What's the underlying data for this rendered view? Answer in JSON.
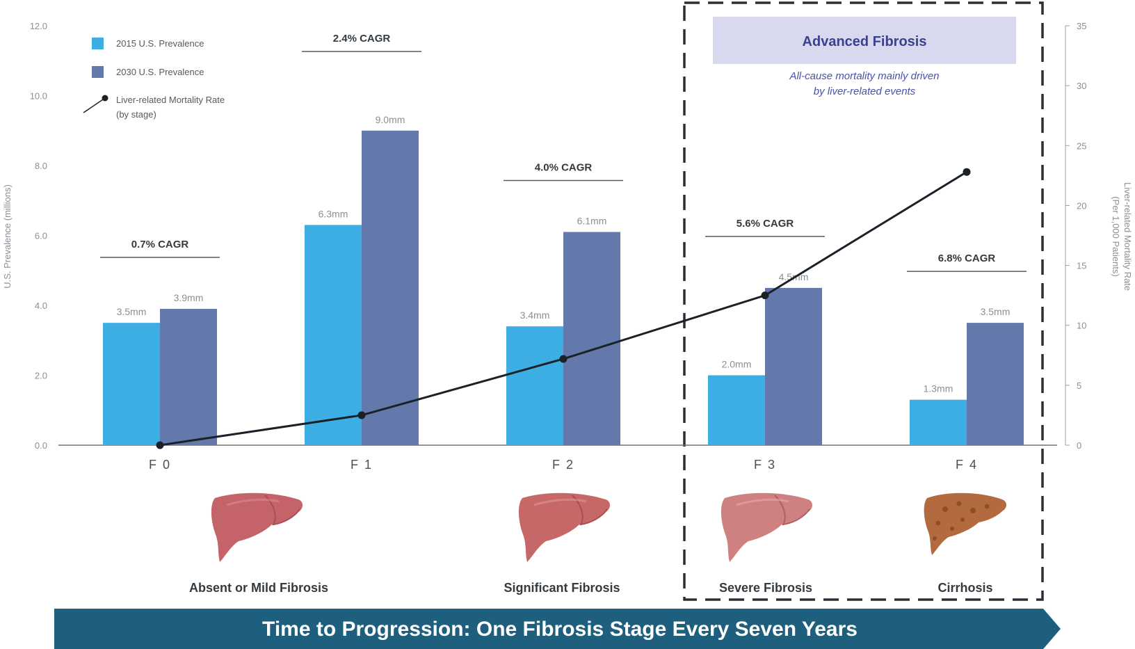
{
  "colors": {
    "series_2015": "#3daee3",
    "series_2030": "#6378ab",
    "line": "#1b2128",
    "banner": "#1f5f7e",
    "advanced_box": "#d8d8ef"
  },
  "legend": {
    "items": [
      "2015 U.S. Prevalence",
      "2030 U.S. Prevalence"
    ],
    "line_label": [
      "Liver-related Mortality Rate",
      "(by stage)"
    ]
  },
  "advanced": {
    "title": "Advanced Fibrosis",
    "subtitle": [
      "All-cause mortality mainly driven",
      "by liver-related events"
    ]
  },
  "stages": [
    {
      "label": "Absent or Mild Fibrosis",
      "icon": "liver-healthy-icon"
    },
    {
      "label": "Significant Fibrosis",
      "icon": "liver-fibrotic-icon"
    },
    {
      "label": "Severe Fibrosis",
      "icon": "liver-severe-icon"
    },
    {
      "label": "Cirrhosis",
      "icon": "liver-cirrhotic-icon"
    }
  ],
  "banner": "Time to Progression: One Fibrosis Stage Every Seven Years",
  "chart_data": {
    "type": "bar",
    "categories": [
      "F 0",
      "F 1",
      "F 2",
      "F 3",
      "F 4"
    ],
    "series": [
      {
        "name": "2015 U.S. Prevalence",
        "values": [
          3.5,
          6.3,
          3.4,
          2.0,
          1.3
        ],
        "labels": [
          "3.5mm",
          "6.3mm",
          "3.4mm",
          "2.0mm",
          "1.3mm"
        ]
      },
      {
        "name": "2030 U.S. Prevalence",
        "values": [
          3.9,
          9.0,
          6.1,
          4.5,
          3.5
        ],
        "labels": [
          "3.9mm",
          "9.0mm",
          "6.1mm",
          "4.5mm",
          "3.5mm"
        ]
      }
    ],
    "line_series": {
      "name": "Liver-related Mortality Rate",
      "axis": "right",
      "values": [
        0,
        2.5,
        7.2,
        12.5,
        22.8
      ]
    },
    "cagr": [
      "0.7% CAGR",
      "2.4% CAGR",
      "4.0% CAGR",
      "5.6% CAGR",
      "6.8% CAGR"
    ],
    "ylabel": "U.S. Prevalence (millions)",
    "ylabel2": [
      "Liver-related Mortality Rate",
      "(Per 1,000 Patients)"
    ],
    "ylim": [
      0,
      12
    ],
    "yticks": [
      "0.0",
      "2.0",
      "4.0",
      "6.0",
      "8.0",
      "10.0",
      "12.0"
    ],
    "y2lim": [
      0,
      35
    ],
    "y2ticks": [
      "0",
      "5",
      "10",
      "15",
      "20",
      "25",
      "30",
      "35"
    ],
    "legend_position": "top-left",
    "grid": false
  }
}
